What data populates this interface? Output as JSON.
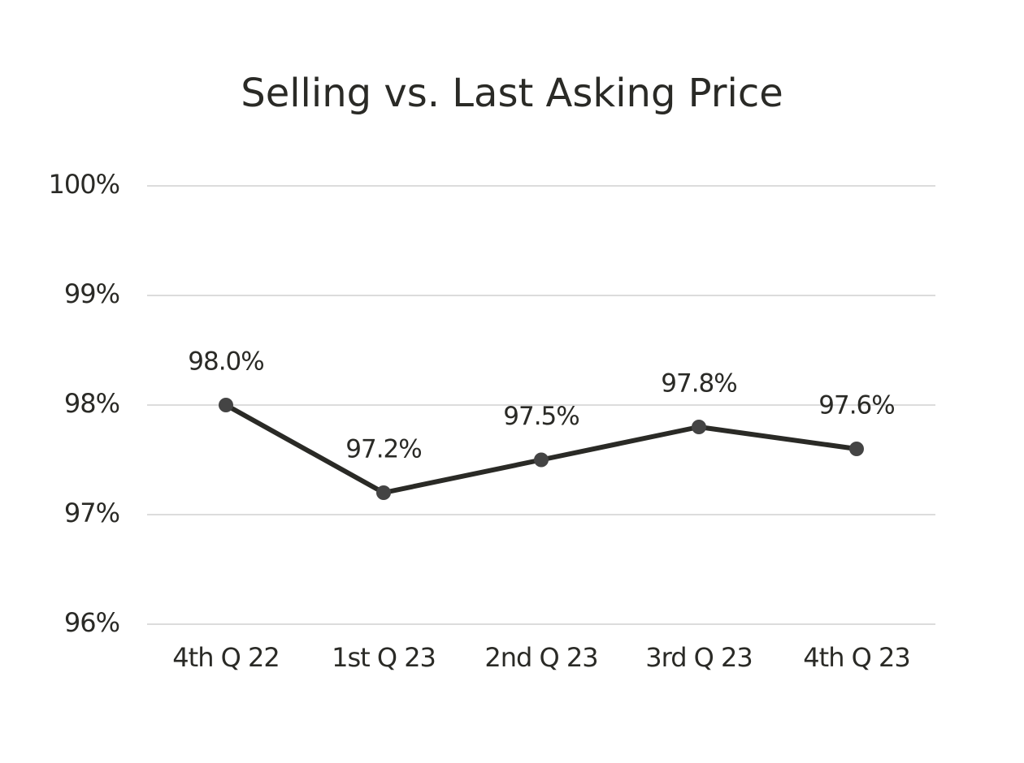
{
  "chart_data": {
    "type": "line",
    "title": "Selling vs. Last Asking Price",
    "categories": [
      "4th Q 22",
      "1st Q 23",
      "2nd Q 23",
      "3rd Q 23",
      "4th Q 23"
    ],
    "values": [
      98.0,
      97.2,
      97.5,
      97.8,
      97.6
    ],
    "value_labels": [
      "98.0%",
      "97.2%",
      "97.5%",
      "97.8%",
      "97.6%"
    ],
    "color": "#2a2a26",
    "ylim": [
      96,
      100
    ],
    "yticks": [
      {
        "value": 96,
        "label": "96%"
      },
      {
        "value": 97,
        "label": "97%"
      },
      {
        "value": 98,
        "label": "98%"
      },
      {
        "value": 99,
        "label": "99%"
      },
      {
        "value": 100,
        "label": "100%"
      }
    ],
    "grid": true
  }
}
